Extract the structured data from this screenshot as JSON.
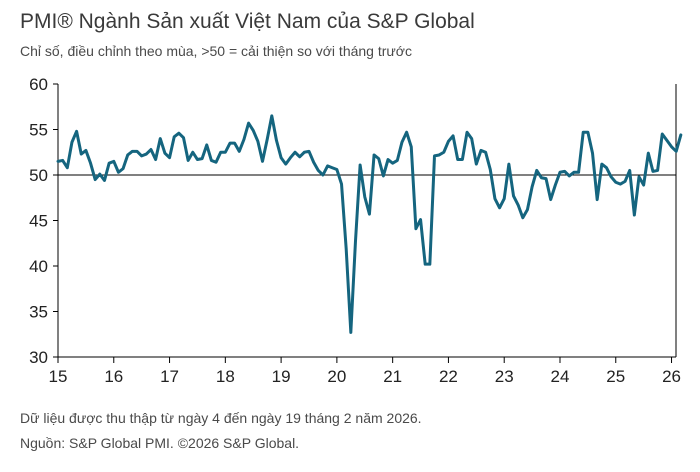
{
  "header": {
    "title": "PMI® Ngành Sản xuất Việt Nam của S&P Global",
    "subtitle": "Chỉ số, điều chỉnh theo mùa, >50 = cải thiện so với tháng trước"
  },
  "footer": {
    "note": "Dữ liệu được thu thập từ ngày 4 đến ngày 19 tháng 2 năm 2026.",
    "source": "Nguồn: S&P Global PMI. ©2026 S&P Global."
  },
  "colors": {
    "line": "#15657f",
    "axis": "#000000",
    "text": "#333333"
  },
  "chart_data": {
    "type": "line",
    "title": "PMI® Ngành Sản xuất Việt Nam của S&P Global",
    "subtitle": "Chỉ số, điều chỉnh theo mùa, >50 = cải thiện so với tháng trước",
    "ylim": [
      30,
      60
    ],
    "yticks": [
      30,
      35,
      40,
      45,
      50,
      55,
      60
    ],
    "xlim": [
      2015.0,
      2026.08
    ],
    "xticks": [
      {
        "value": 2015,
        "label": "15"
      },
      {
        "value": 2016,
        "label": "16"
      },
      {
        "value": 2017,
        "label": "17"
      },
      {
        "value": 2018,
        "label": "18"
      },
      {
        "value": 2019,
        "label": "19"
      },
      {
        "value": 2020,
        "label": "20"
      },
      {
        "value": 2021,
        "label": "21"
      },
      {
        "value": 2022,
        "label": "22"
      },
      {
        "value": 2023,
        "label": "23"
      },
      {
        "value": 2024,
        "label": "24"
      },
      {
        "value": 2025,
        "label": "25"
      },
      {
        "value": 2026,
        "label": "26"
      }
    ],
    "grid": false,
    "reference_line": 50,
    "series": [
      {
        "start": "2015-01",
        "values": [
          51.5,
          51.6,
          50.8,
          53.6,
          54.8,
          52.3,
          52.7,
          51.3,
          49.5,
          50.1,
          49.4,
          51.3,
          51.5,
          50.3,
          50.7,
          52.2,
          52.6,
          52.6,
          52.1,
          52.3,
          52.8,
          51.7,
          54.0,
          52.4,
          51.9,
          54.2,
          54.6,
          54.1,
          51.6,
          52.5,
          51.7,
          51.8,
          53.3,
          51.6,
          51.4,
          52.5,
          52.5,
          53.5,
          53.5,
          52.6,
          53.9,
          55.7,
          54.9,
          53.7,
          51.5,
          53.9,
          56.5,
          53.8,
          51.9,
          51.2,
          51.9,
          52.5,
          52.0,
          52.5,
          52.6,
          51.4,
          50.5,
          50.0,
          51.0,
          50.8,
          50.6,
          49.0,
          41.9,
          32.7,
          42.7,
          51.1,
          47.6,
          45.7,
          52.2,
          51.8,
          49.9,
          51.7,
          51.3,
          51.6,
          53.6,
          54.7,
          53.1,
          44.1,
          45.1,
          40.2,
          40.2,
          52.1,
          52.2,
          52.5,
          53.7,
          54.3,
          51.7,
          51.7,
          54.7,
          54.0,
          51.2,
          52.7,
          52.5,
          50.6,
          47.4,
          46.4,
          47.4,
          51.2,
          47.7,
          46.7,
          45.3,
          46.2,
          48.7,
          50.5,
          49.7,
          49.6,
          47.3,
          48.9,
          50.3,
          50.4,
          49.9,
          50.3,
          50.3,
          54.7,
          54.7,
          52.4,
          47.3,
          51.2,
          50.8,
          49.8,
          49.2,
          49.0,
          49.3,
          50.5,
          45.6,
          49.8,
          48.9,
          52.4,
          50.4,
          50.5,
          54.5,
          53.8,
          53.1,
          52.6,
          54.4
        ]
      }
    ]
  }
}
